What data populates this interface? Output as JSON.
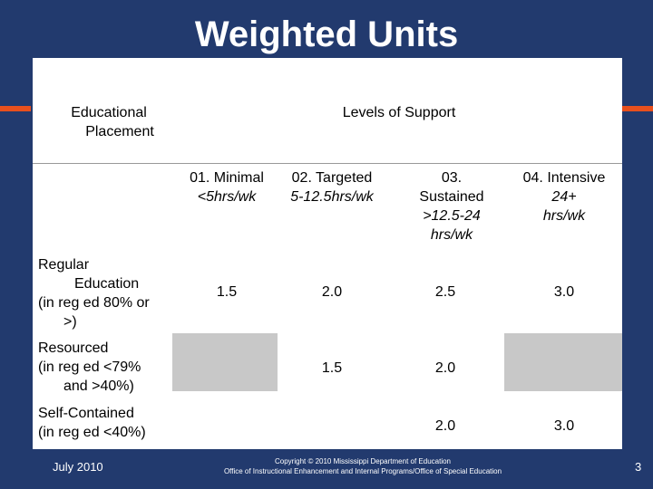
{
  "slide": {
    "title": "Weighted Units",
    "footer_date": "July 2010",
    "footer_line1": "Copyright © 2010 Mississippi Department of Education",
    "footer_line2": "Office of Instructional Enhancement and Internal Programs/Office of Special Education",
    "page_number": "3"
  },
  "table": {
    "placement_header_line1": "Educational",
    "placement_header_line2": "Placement",
    "levels_header": "Levels of Support",
    "columns": [
      {
        "label_line1": "01. Minimal",
        "label_line2": "<5hrs/wk"
      },
      {
        "label_line1": "02. Targeted",
        "label_line2": "5-12.5hrs/wk"
      },
      {
        "label_line1": "03.",
        "label_line2": "Sustained",
        "label_line3": ">12.5-24",
        "label_line4": "hrs/wk"
      },
      {
        "label_line1": "04. Intensive",
        "label_line2": "24+",
        "label_line3": "hrs/wk"
      }
    ],
    "rows": [
      {
        "label_line1": "Regular",
        "label_line2": "Education",
        "label_line3": "(in reg ed 80% or",
        "label_line4": ">)",
        "values": [
          "1.5",
          "2.0",
          "2.5",
          "3.0"
        ]
      },
      {
        "label_line1": "Resourced",
        "label_line2": "(in reg ed <79%",
        "label_line3": "and >40%)",
        "values": [
          "",
          "1.5",
          "2.0",
          ""
        ]
      },
      {
        "label_line1": "Self-Contained",
        "label_line2": "(in reg ed <40%)",
        "values": [
          "",
          "",
          "2.0",
          "3.0"
        ]
      }
    ]
  },
  "colors": {
    "background": "#223a6e",
    "accent": "#e8501d",
    "shade": "#c8c8c8"
  }
}
